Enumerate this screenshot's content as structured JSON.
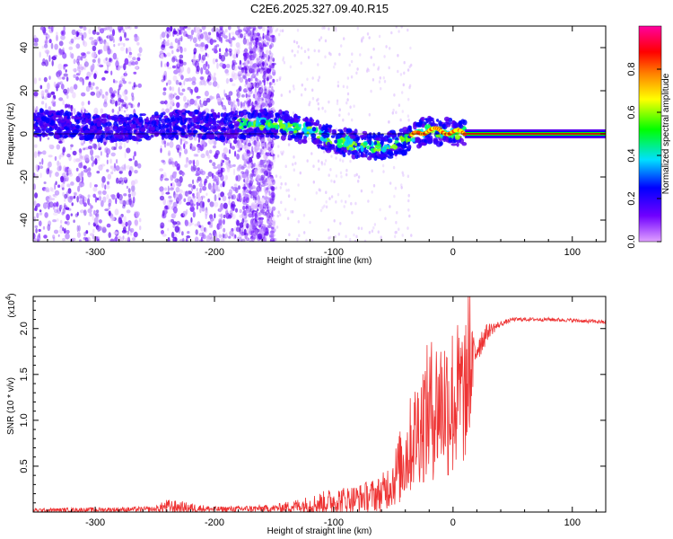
{
  "title": "C2E6.2025.327.09.40.R15",
  "chart_data": [
    {
      "type": "heatmap",
      "name": "spectrogram",
      "xlabel": "Height of straight line (km)",
      "ylabel": "Frequency (Hz)",
      "xlim": [
        -352,
        128
      ],
      "ylim": [
        -50,
        50
      ],
      "xticks": [
        -300,
        -200,
        -100,
        0,
        100
      ],
      "yticks": [
        -40,
        -20,
        0,
        20,
        40
      ],
      "colorbar": {
        "label": "Normalized spectral amplitude",
        "range": [
          0,
          1
        ],
        "ticks": [
          0.0,
          0.2,
          0.4,
          0.6,
          0.8
        ],
        "tick_labels": [
          "0.0",
          "0.2",
          "0.4",
          "0.6",
          "0.8"
        ],
        "colormap": [
          "#e0a0ff",
          "#7000ff",
          "#0000ff",
          "#00e0ff",
          "#00ff00",
          "#ffff00",
          "#ff8000",
          "#ff0000",
          "#ff00a0"
        ]
      },
      "ridge": {
        "description_points_x": [
          -345,
          -320,
          -300,
          -280,
          -260,
          -240,
          -220,
          -200,
          -180,
          -160,
          -140,
          -120,
          -100,
          -80,
          -60,
          -40,
          -30,
          -20,
          -10,
          0,
          10,
          20,
          50,
          100,
          128
        ],
        "description_points_y": [
          5,
          4,
          3,
          2,
          3,
          4,
          5,
          3,
          4,
          5,
          4,
          1,
          -3,
          -5,
          -6,
          -3,
          0,
          2,
          1,
          1,
          0,
          0,
          0,
          0,
          0
        ]
      }
    },
    {
      "type": "line",
      "name": "snr",
      "xlabel": "Height of straight line (km)",
      "ylabel": "SNR (10 * v/v)",
      "scale_label": "(x10",
      "scale_exp": "4",
      "xlim": [
        -352,
        128
      ],
      "ylim": [
        0,
        2.35
      ],
      "xticks": [
        -300,
        -200,
        -100,
        0,
        100
      ],
      "yticks": [
        0.5,
        1.0,
        1.5,
        2.0
      ],
      "ytick_labels": [
        "0.5",
        "1.0",
        "1.5",
        "2.0"
      ],
      "color": "#ee3333",
      "envelope": {
        "x": [
          -352,
          -250,
          -240,
          -200,
          -150,
          -120,
          -100,
          -80,
          -60,
          -50,
          -40,
          -30,
          -20,
          -10,
          0,
          10,
          15,
          20,
          30,
          40,
          50,
          60,
          80,
          100,
          128
        ],
        "base": [
          0.02,
          0.03,
          0.06,
          0.03,
          0.04,
          0.08,
          0.12,
          0.15,
          0.2,
          0.35,
          0.6,
          0.9,
          1.1,
          1.2,
          1.2,
          1.3,
          1.5,
          1.8,
          1.98,
          2.05,
          2.1,
          2.1,
          2.1,
          2.09,
          2.07
        ],
        "spread": [
          0.02,
          0.03,
          0.08,
          0.03,
          0.04,
          0.1,
          0.15,
          0.15,
          0.2,
          0.3,
          0.5,
          0.6,
          0.8,
          0.8,
          0.9,
          0.8,
          0.5,
          0.2,
          0.08,
          0.03,
          0.02,
          0.02,
          0.02,
          0.02,
          0.02
        ]
      }
    }
  ]
}
